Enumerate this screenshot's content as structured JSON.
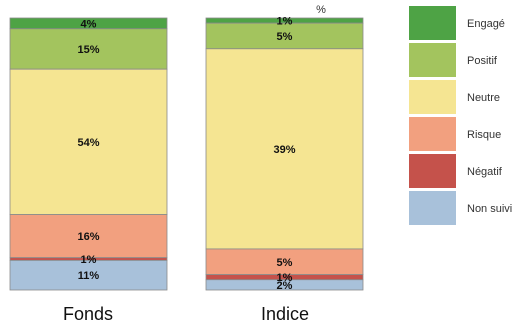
{
  "chart_data": {
    "type": "bar",
    "stacked": true,
    "unit_label": "%",
    "categories": [
      "Fonds",
      "Indice"
    ],
    "series": [
      {
        "name": "Engagé",
        "color": "#4ea345",
        "values": [
          4,
          1
        ]
      },
      {
        "name": "Positif",
        "color": "#a3c45e",
        "values": [
          15,
          5
        ]
      },
      {
        "name": "Neutre",
        "color": "#f5e592",
        "values": [
          54,
          39
        ]
      },
      {
        "name": "Risque",
        "color": "#f2a07f",
        "values": [
          16,
          5
        ]
      },
      {
        "name": "Négatif",
        "color": "#c5524b",
        "values": [
          1,
          1
        ]
      },
      {
        "name": "Non suivi",
        "color": "#a8c1da",
        "values": [
          11,
          2
        ]
      }
    ]
  }
}
